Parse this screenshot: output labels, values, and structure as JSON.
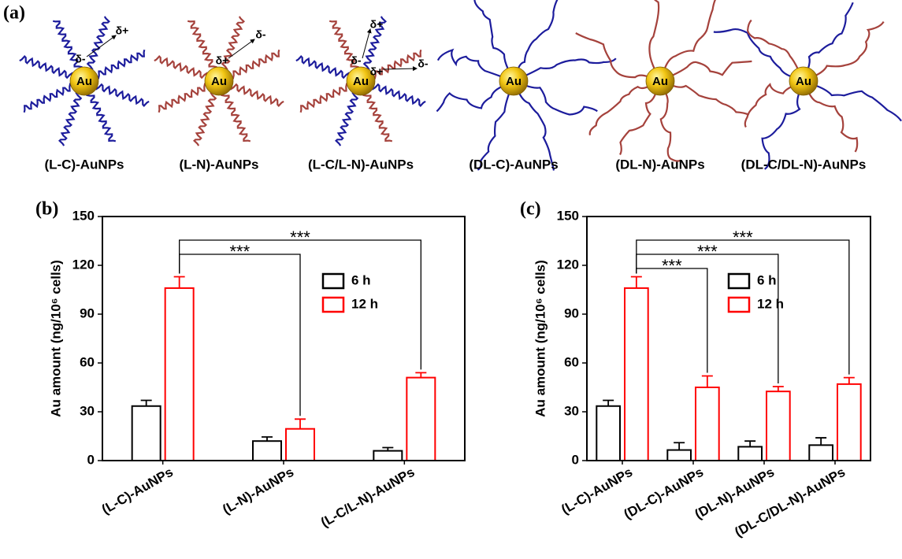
{
  "panel_a": {
    "label": "(a)",
    "core": "Au",
    "particles": [
      {
        "label": "(L-C)-AuNPs",
        "charges": [
          "δ-",
          "δ+"
        ]
      },
      {
        "label": "(L-N)-AuNPs",
        "charges": [
          "δ+",
          "δ-"
        ]
      },
      {
        "label": "(L-C/L-N)-AuNPs",
        "charges": [
          "δ-",
          "δ+",
          "δ+",
          "δ-"
        ]
      },
      {
        "label": "(DL-C)-AuNPs"
      },
      {
        "label": "(DL-N)-AuNPs"
      },
      {
        "label": "(DL-C/DL-N)-AuNPs"
      }
    ]
  },
  "chart_data": [
    {
      "type": "bar",
      "panel": "(b)",
      "ylabel": "Au amount (ng/10⁶ cells)",
      "categories": [
        "(L-C)-AuNPs",
        "(L-N)-AuNPs",
        "(L-C/L-N)-AuNPs"
      ],
      "series": [
        {
          "name": "6 h",
          "color": "#000000",
          "values": [
            33.5,
            12,
            6
          ],
          "errors": [
            3.5,
            2.5,
            2
          ]
        },
        {
          "name": "12 h",
          "color": "#ff0000",
          "values": [
            106,
            19.5,
            51
          ],
          "errors": [
            7,
            6,
            3
          ]
        }
      ],
      "ylim": [
        0,
        150
      ],
      "yticks": [
        0,
        30,
        60,
        90,
        120,
        150
      ],
      "legend": "right",
      "annotations": [
        {
          "text": "***",
          "from": "(L-C)-AuNPs",
          "to": "(L-N)-AuNPs"
        },
        {
          "text": "***",
          "from": "(L-C)-AuNPs",
          "to": "(L-C/L-N)-AuNPs"
        }
      ]
    },
    {
      "type": "bar",
      "panel": "(c)",
      "ylabel": "Au amount (ng/10⁶ cells)",
      "categories": [
        "(L-C)-AuNPs",
        "(DL-C)-AuNPs",
        "(DL-N)-AuNPs",
        "(DL-C/DL-N)-AuNPs"
      ],
      "series": [
        {
          "name": "6 h",
          "color": "#000000",
          "values": [
            33.5,
            6.5,
            8.5,
            9.5
          ],
          "errors": [
            3.5,
            4.5,
            3.5,
            4.5
          ]
        },
        {
          "name": "12 h",
          "color": "#ff0000",
          "values": [
            106,
            45,
            42.5,
            47
          ],
          "errors": [
            7,
            7,
            3,
            4
          ]
        }
      ],
      "ylim": [
        0,
        150
      ],
      "yticks": [
        0,
        30,
        60,
        90,
        120,
        150
      ],
      "legend": "right",
      "annotations": [
        {
          "text": "***",
          "from": "(L-C)-AuNPs",
          "to": "(DL-C)-AuNPs"
        },
        {
          "text": "***",
          "from": "(L-C)-AuNPs",
          "to": "(DL-N)-AuNPs"
        },
        {
          "text": "***",
          "from": "(L-C)-AuNPs",
          "to": "(DL-C/DL-N)-AuNPs"
        }
      ]
    }
  ]
}
